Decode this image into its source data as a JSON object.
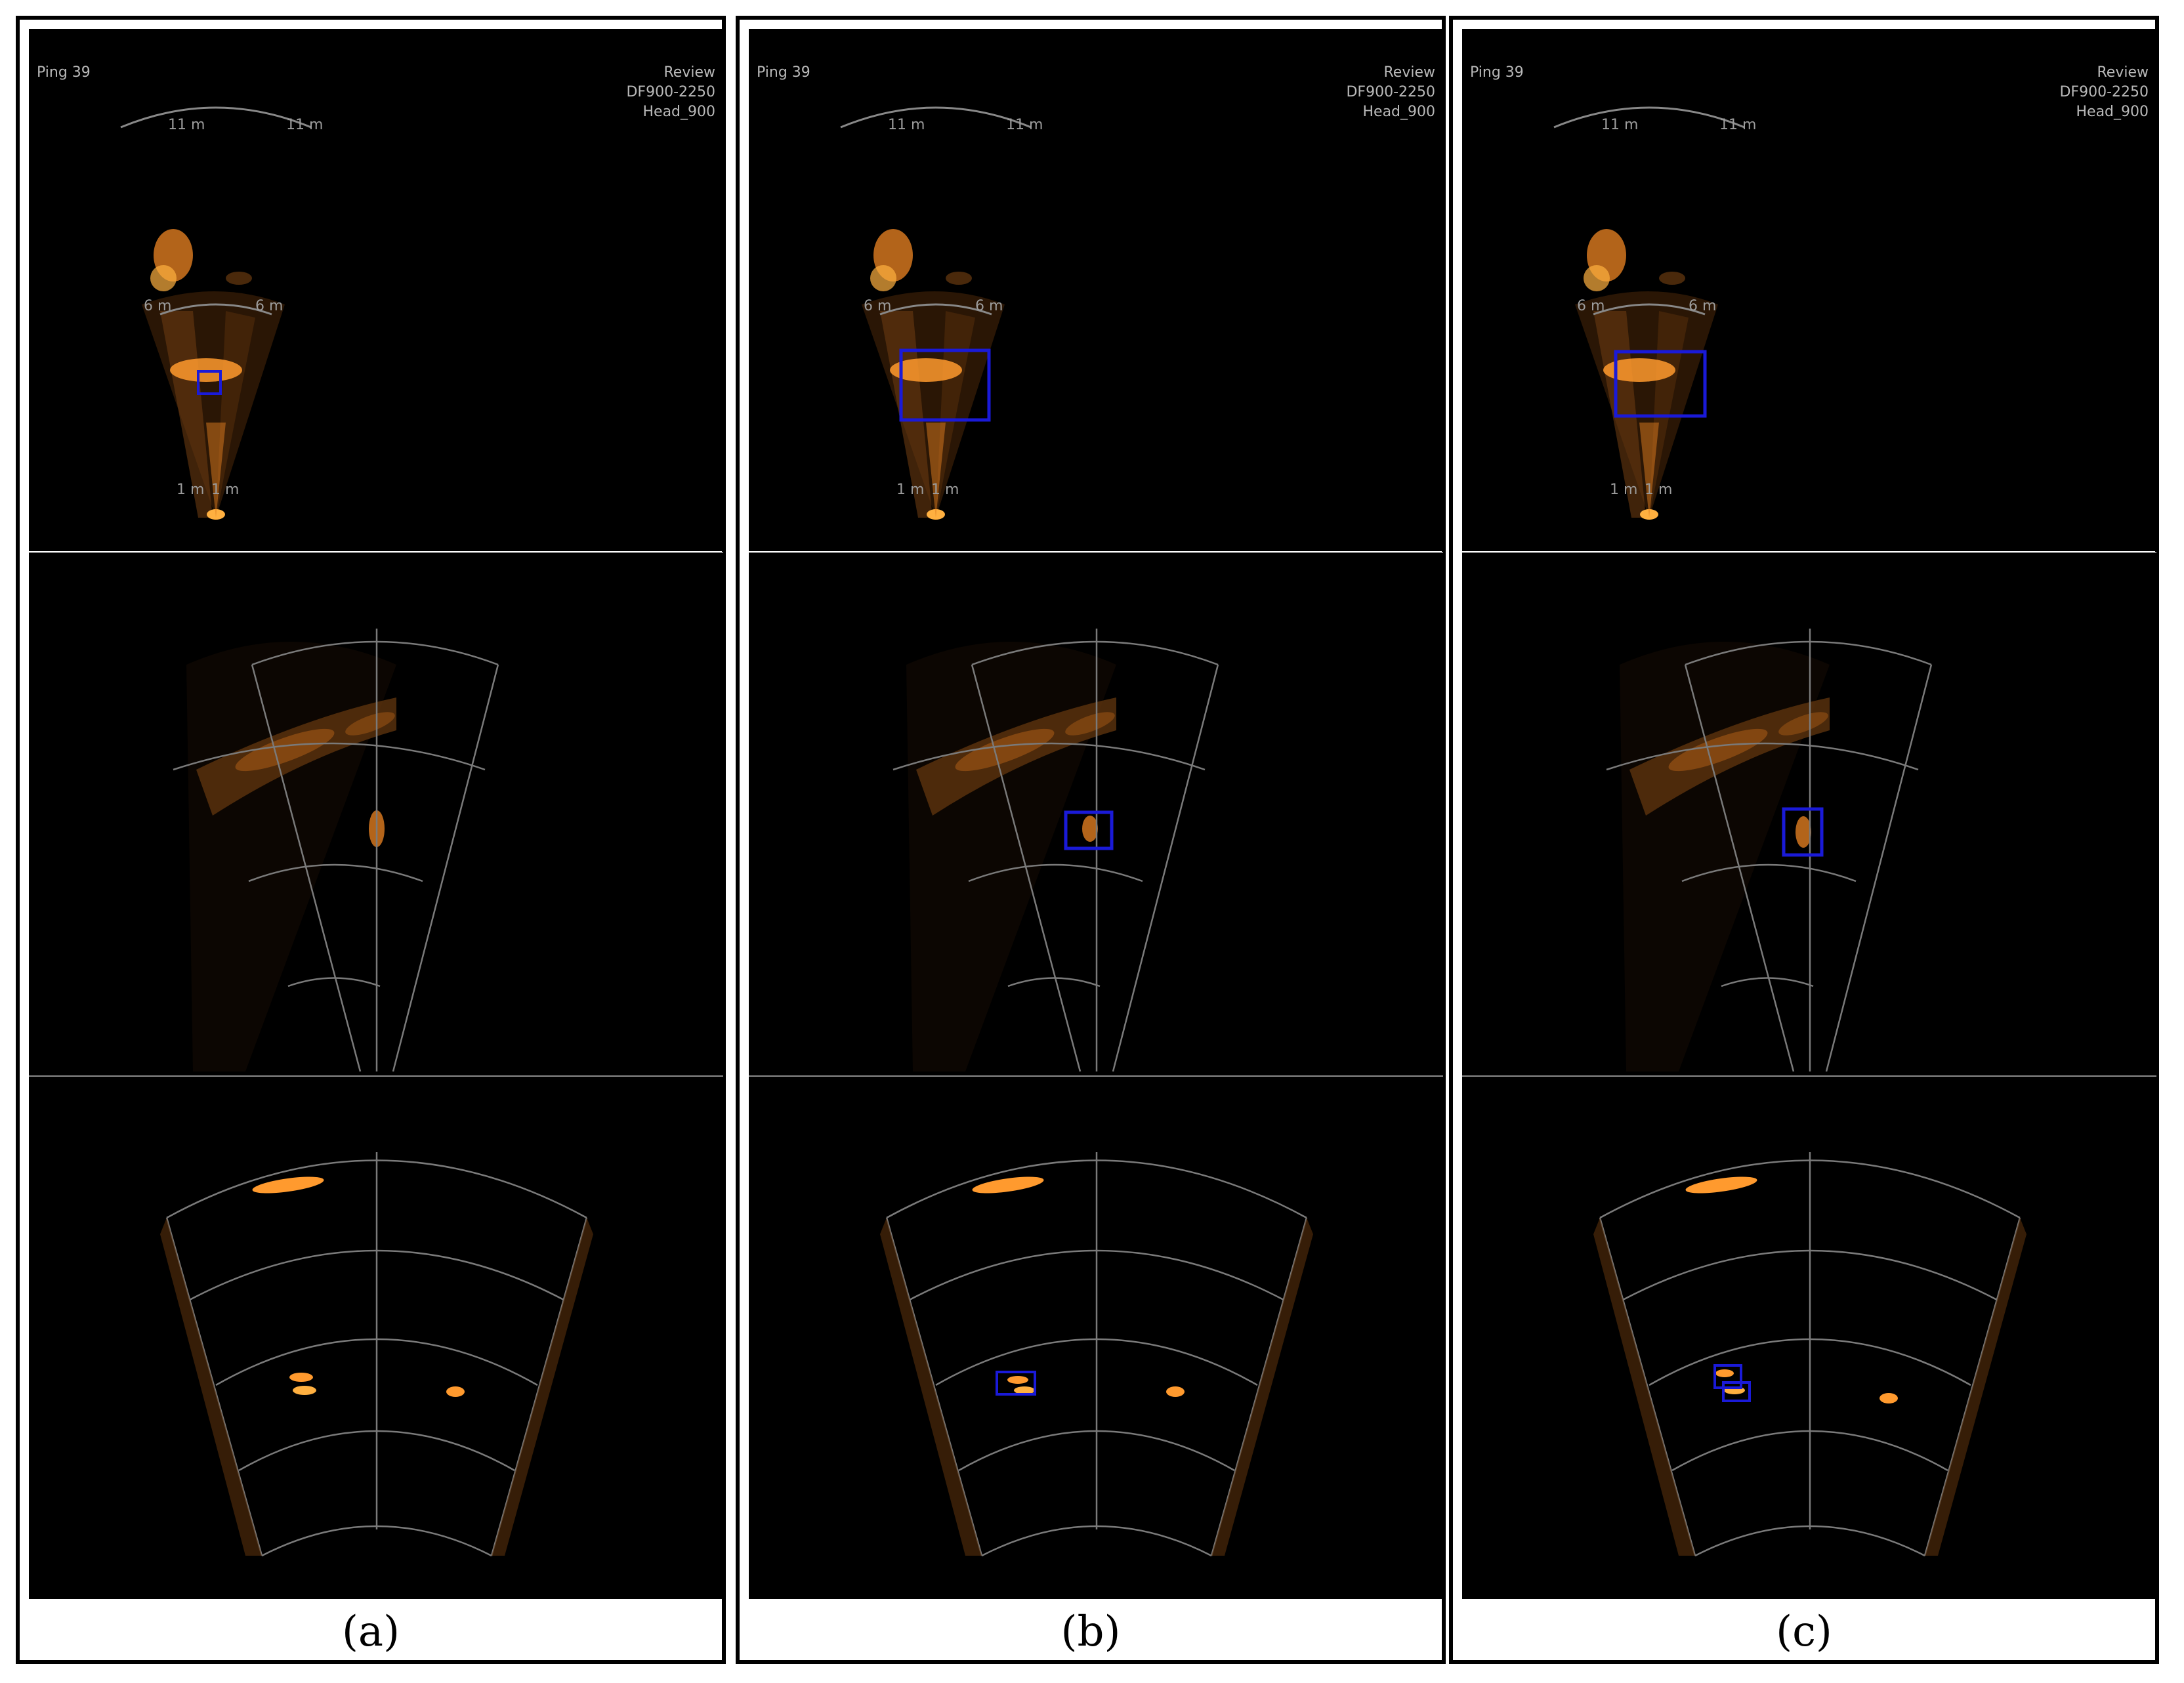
{
  "panels": [
    {
      "caption": "(a)",
      "ping": "Ping 39",
      "mode": "Review",
      "model": "DF900-2250",
      "head": "Head_900",
      "range_labels": {
        "far_left": "11 m",
        "far_right": "11 m",
        "mid_left": "6 m",
        "mid_right": "6 m",
        "near_left": "1 m",
        "near_right": "1 m"
      }
    },
    {
      "caption": "(b)",
      "ping": "Ping 39",
      "mode": "Review",
      "model": "DF900-2250",
      "head": "Head_900",
      "range_labels": {
        "far_left": "11 m",
        "far_right": "11 m",
        "mid_left": "6 m",
        "mid_right": "6 m",
        "near_left": "1 m",
        "near_right": "1 m"
      }
    },
    {
      "caption": "(c)",
      "ping": "Ping 39",
      "mode": "Review",
      "model": "DF900-2250",
      "head": "Head_900",
      "range_labels": {
        "far_left": "11 m",
        "far_right": "11 m",
        "mid_left": "6 m",
        "mid_right": "6 m",
        "near_left": "1 m",
        "near_right": "1 m"
      }
    }
  ],
  "colors": {
    "sonar": "#ff9a2e",
    "box": "#1a1ad8",
    "grid": "#7a7a7a"
  }
}
